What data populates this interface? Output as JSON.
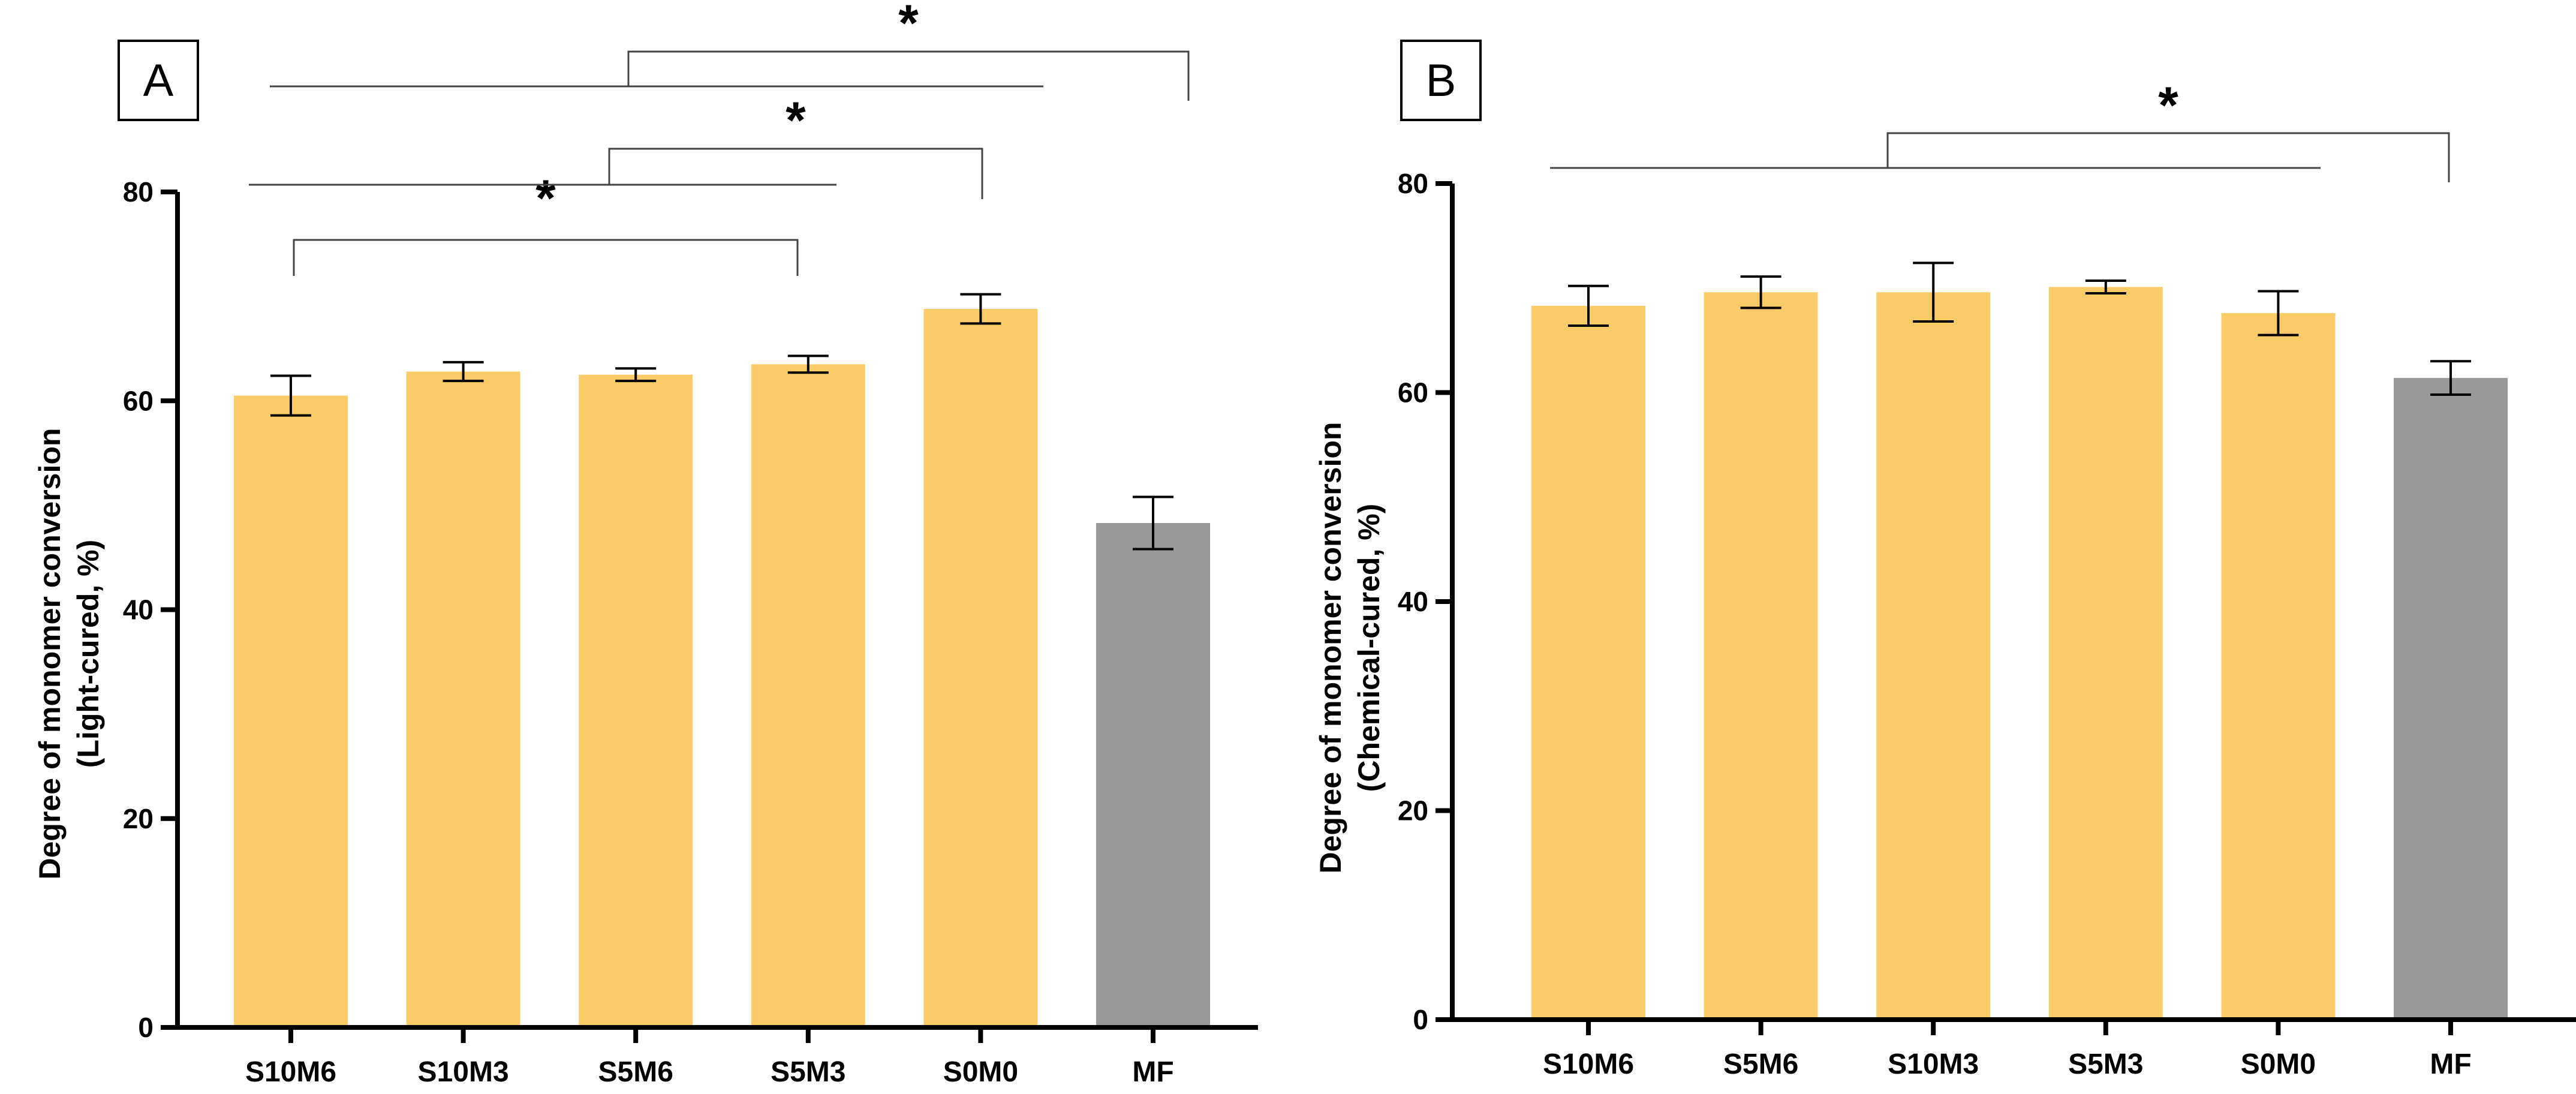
{
  "chart_data": [
    {
      "panel_label": "A",
      "type": "bar",
      "categories": [
        "S10M6",
        "S10M3",
        "S5M6",
        "S5M3",
        "S0M0",
        "MF"
      ],
      "values": [
        60.5,
        62.8,
        62.5,
        63.5,
        68.8,
        48.3
      ],
      "errors": [
        1.9,
        0.9,
        0.6,
        0.8,
        1.4,
        2.5
      ],
      "bar_colors": [
        "#FBCB68",
        "#FBCB68",
        "#FBCB68",
        "#FBCB68",
        "#FBCB68",
        "#999999"
      ],
      "ylabel_line1": "Degree of monomer conversion",
      "ylabel_line2": "(Light-cured, %)",
      "ylim": [
        0,
        80
      ],
      "yticks": [
        0,
        20,
        40,
        60,
        80
      ],
      "significance_marker": "*",
      "significance": [
        {
          "group_from": 0,
          "group_to": 3,
          "marker": "*"
        },
        {
          "group_from_span": [
            0,
            3
          ],
          "group_to": 4,
          "marker": "*"
        },
        {
          "group_from_span": [
            0,
            4
          ],
          "group_to": 5,
          "marker": "*"
        }
      ]
    },
    {
      "panel_label": "B",
      "type": "bar",
      "categories": [
        "S10M6",
        "S5M6",
        "S10M3",
        "S5M3",
        "S0M0",
        "MF"
      ],
      "values": [
        68.3,
        69.6,
        69.6,
        70.1,
        67.6,
        61.4
      ],
      "errors": [
        1.9,
        1.5,
        2.8,
        0.6,
        2.1,
        1.6
      ],
      "bar_colors": [
        "#FBCB68",
        "#FBCB68",
        "#FBCB68",
        "#FBCB68",
        "#FBCB68",
        "#999999"
      ],
      "ylabel_line1": "Degree of monomer conversion",
      "ylabel_line2": "(Chemical-cured, %)",
      "ylim": [
        0,
        80
      ],
      "yticks": [
        0,
        20,
        40,
        60,
        80
      ],
      "significance_marker": "*",
      "significance": [
        {
          "group_from_span": [
            0,
            4
          ],
          "group_to": 5,
          "marker": "*"
        }
      ]
    }
  ]
}
